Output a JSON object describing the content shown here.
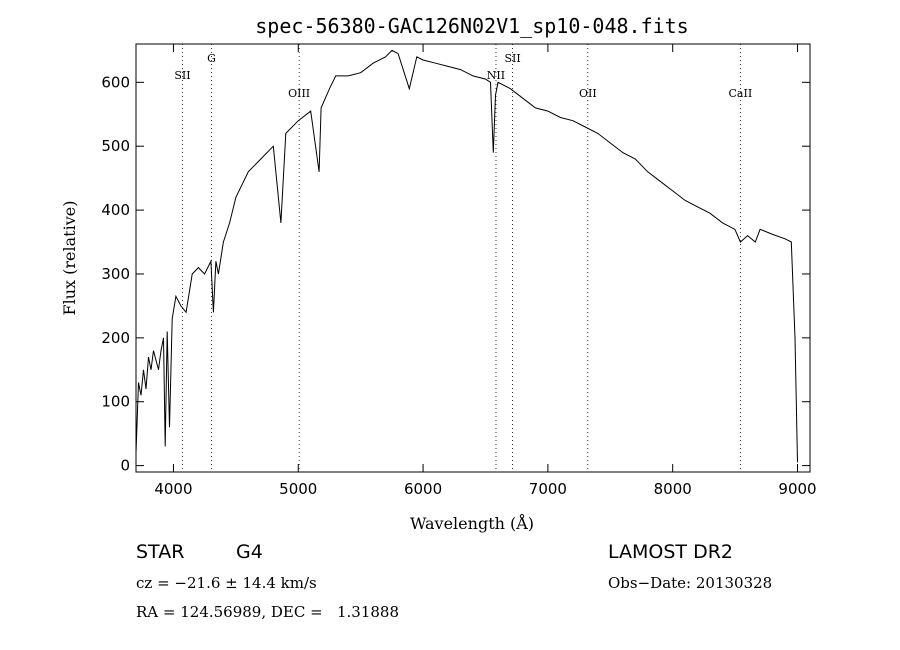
{
  "chart_data": {
    "type": "line",
    "title": "spec-56380-GAC126N02V1_sp10-048.fits",
    "xlabel": "Wavelength (Å)",
    "ylabel": "Flux (relative)",
    "xlim": [
      3700,
      9100
    ],
    "ylim": [
      -10,
      660
    ],
    "x_ticks": [
      4000,
      5000,
      6000,
      7000,
      8000,
      9000
    ],
    "y_ticks": [
      0,
      100,
      200,
      300,
      400,
      500,
      600
    ],
    "grid": false,
    "series": [
      {
        "x": [
          3700,
          3720,
          3740,
          3760,
          3780,
          3800,
          3820,
          3840,
          3860,
          3880,
          3900,
          3920,
          3934,
          3950,
          3968,
          3990,
          4020,
          4060,
          4101,
          4150,
          4200,
          4250,
          4300,
          4320,
          4340,
          4360,
          4400,
          4450,
          4500,
          4600,
          4700,
          4800,
          4861,
          4900,
          5000,
          5100,
          5167,
          5183,
          5250,
          5300,
          5400,
          5500,
          5600,
          5700,
          5750,
          5800,
          5890,
          5950,
          6000,
          6100,
          6200,
          6300,
          6400,
          6500,
          6540,
          6563,
          6580,
          6600,
          6700,
          6800,
          6900,
          7000,
          7100,
          7200,
          7300,
          7400,
          7500,
          7600,
          7700,
          7800,
          7900,
          8000,
          8100,
          8200,
          8300,
          8400,
          8498,
          8542,
          8600,
          8662,
          8700,
          8800,
          8900,
          8950,
          8980,
          9000
        ],
        "y": [
          20,
          130,
          110,
          150,
          120,
          170,
          150,
          180,
          165,
          150,
          180,
          200,
          30,
          210,
          60,
          230,
          265,
          250,
          240,
          300,
          310,
          300,
          320,
          240,
          320,
          300,
          350,
          380,
          420,
          460,
          480,
          500,
          380,
          520,
          540,
          555,
          460,
          560,
          590,
          610,
          610,
          615,
          630,
          640,
          650,
          645,
          590,
          640,
          635,
          630,
          625,
          620,
          610,
          605,
          600,
          490,
          580,
          600,
          590,
          575,
          560,
          555,
          545,
          540,
          530,
          520,
          505,
          490,
          480,
          460,
          445,
          430,
          415,
          405,
          395,
          380,
          370,
          350,
          360,
          350,
          370,
          362,
          355,
          350,
          200,
          5
        ]
      }
    ],
    "annotations": [
      {
        "label": "SII",
        "x": 4072
      },
      {
        "label": "G",
        "x": 4305
      },
      {
        "label": "OIII",
        "x": 5007
      },
      {
        "label": "NII",
        "x": 6584
      },
      {
        "label": "SII",
        "x": 6717
      },
      {
        "label": "OII",
        "x": 7320
      },
      {
        "label": "CaII",
        "x": 8542
      }
    ]
  },
  "info": {
    "obj_class": "STAR",
    "subclass": "G4",
    "survey": "LAMOST DR2",
    "cz": "cz = −21.6 ± 14.4 km/s",
    "obs_date": "Obs−Date: 20130328",
    "radec": "RA = 124.56989, DEC =   1.31888"
  }
}
